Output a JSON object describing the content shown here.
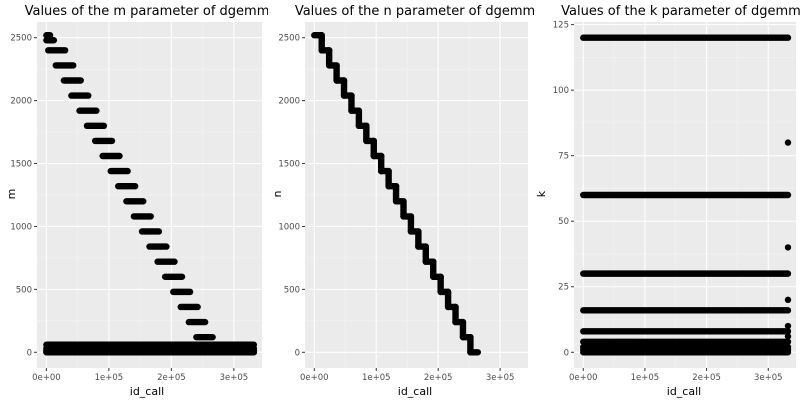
{
  "chart_data": [
    {
      "type": "scatter",
      "title": "Values of the m parameter of dgemm",
      "xlabel": "id_call",
      "ylabel": "m",
      "xlim": [
        -15000,
        345000
      ],
      "ylim": [
        -125,
        2625
      ],
      "x_ticks": [
        0,
        100000,
        200000,
        300000
      ],
      "x_tick_labels": [
        "0e+00",
        "1e+05",
        "2e+05",
        "3e+05"
      ],
      "y_ticks": [
        0,
        500,
        1000,
        1500,
        2000,
        2500
      ],
      "y_tick_labels": [
        "0",
        "500",
        "1000",
        "1500",
        "2000",
        "2500"
      ],
      "grid": true,
      "point_color": "#000000",
      "panel_background": "#ebebeb",
      "bands": [
        {
          "x_start": 0,
          "x_end": 6000,
          "y": 2520
        },
        {
          "x_start": 0,
          "x_end": 12000,
          "y": 2480
        },
        {
          "x_start": 3000,
          "x_end": 30000,
          "y": 2400
        },
        {
          "x_start": 15000,
          "x_end": 43000,
          "y": 2280
        },
        {
          "x_start": 28000,
          "x_end": 55000,
          "y": 2160
        },
        {
          "x_start": 40000,
          "x_end": 67000,
          "y": 2040
        },
        {
          "x_start": 53000,
          "x_end": 80000,
          "y": 1920
        },
        {
          "x_start": 65000,
          "x_end": 92000,
          "y": 1800
        },
        {
          "x_start": 78000,
          "x_end": 105000,
          "y": 1680
        },
        {
          "x_start": 90000,
          "x_end": 117000,
          "y": 1560
        },
        {
          "x_start": 103000,
          "x_end": 130000,
          "y": 1440
        },
        {
          "x_start": 115000,
          "x_end": 142000,
          "y": 1320
        },
        {
          "x_start": 128000,
          "x_end": 155000,
          "y": 1200
        },
        {
          "x_start": 140000,
          "x_end": 167000,
          "y": 1080
        },
        {
          "x_start": 153000,
          "x_end": 180000,
          "y": 960
        },
        {
          "x_start": 165000,
          "x_end": 192000,
          "y": 840
        },
        {
          "x_start": 178000,
          "x_end": 205000,
          "y": 720
        },
        {
          "x_start": 190000,
          "x_end": 217000,
          "y": 600
        },
        {
          "x_start": 203000,
          "x_end": 230000,
          "y": 480
        },
        {
          "x_start": 215000,
          "x_end": 242000,
          "y": 360
        },
        {
          "x_start": 228000,
          "x_end": 254000,
          "y": 240
        },
        {
          "x_start": 240000,
          "x_end": 266000,
          "y": 120
        },
        {
          "x_start": 252000,
          "x_end": 278000,
          "y": 60
        },
        {
          "x_start": 264000,
          "x_end": 290000,
          "y": 30
        },
        {
          "x_start": 276000,
          "x_end": 302000,
          "y": 8
        },
        {
          "x_start": 288000,
          "x_end": 314000,
          "y": 2
        },
        {
          "x_start": 300000,
          "x_end": 326000,
          "y": 0
        },
        {
          "x_start": 312000,
          "x_end": 332000,
          "y": 0
        },
        {
          "x_start": 0,
          "x_end": 332000,
          "y": 60
        },
        {
          "x_start": 0,
          "x_end": 332000,
          "y": 30
        },
        {
          "x_start": 0,
          "x_end": 332000,
          "y": 16
        },
        {
          "x_start": 0,
          "x_end": 332000,
          "y": 4
        },
        {
          "x_start": 0,
          "x_end": 332000,
          "y": 0
        }
      ],
      "points": []
    },
    {
      "type": "scatter",
      "title": "Values of the n parameter of dgemm",
      "xlabel": "id_call",
      "ylabel": "n",
      "xlim": [
        -15000,
        345000
      ],
      "ylim": [
        -125,
        2625
      ],
      "x_ticks": [
        0,
        100000,
        200000,
        300000
      ],
      "x_tick_labels": [
        "0e+00",
        "1e+05",
        "2e+05",
        "3e+05"
      ],
      "y_ticks": [
        0,
        500,
        1000,
        1500,
        2000,
        2500
      ],
      "y_tick_labels": [
        "0",
        "500",
        "1000",
        "1500",
        "2000",
        "2500"
      ],
      "grid": true,
      "point_color": "#000000",
      "panel_background": "#ebebeb",
      "diagonal": {
        "x_start": 0,
        "x_end": 332000,
        "y_start": 2520,
        "y_end": 0,
        "step_x": 12000,
        "step_y": 120
      },
      "bands": [],
      "points": []
    },
    {
      "type": "scatter",
      "title": "Values of the k parameter of dgemm",
      "xlabel": "id_call",
      "ylabel": "k",
      "xlim": [
        -15000,
        345000
      ],
      "ylim": [
        -6,
        126
      ],
      "x_ticks": [
        0,
        100000,
        200000,
        300000
      ],
      "x_tick_labels": [
        "0e+00",
        "1e+05",
        "2e+05",
        "3e+05"
      ],
      "y_ticks": [
        0,
        25,
        50,
        75,
        100,
        125
      ],
      "y_tick_labels": [
        "0",
        "25",
        "50",
        "75",
        "100",
        "125"
      ],
      "grid": true,
      "point_color": "#000000",
      "panel_background": "#ebebeb",
      "bands": [
        {
          "x_start": 0,
          "x_end": 332000,
          "y": 120
        },
        {
          "x_start": 0,
          "x_end": 332000,
          "y": 60
        },
        {
          "x_start": 0,
          "x_end": 332000,
          "y": 30
        },
        {
          "x_start": 0,
          "x_end": 332000,
          "y": 16
        },
        {
          "x_start": 0,
          "x_end": 332000,
          "y": 8
        },
        {
          "x_start": 0,
          "x_end": 332000,
          "y": 4
        },
        {
          "x_start": 0,
          "x_end": 332000,
          "y": 2
        },
        {
          "x_start": 0,
          "x_end": 332000,
          "y": 1
        },
        {
          "x_start": 0,
          "x_end": 332000,
          "y": 0
        }
      ],
      "points": [
        {
          "x": 332000,
          "y": 80
        },
        {
          "x": 332000,
          "y": 40
        },
        {
          "x": 332000,
          "y": 20
        },
        {
          "x": 332000,
          "y": 10
        },
        {
          "x": 332000,
          "y": 6
        }
      ]
    }
  ]
}
